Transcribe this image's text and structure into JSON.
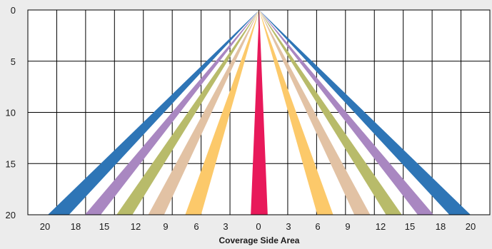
{
  "chart_data": {
    "type": "area",
    "title": "",
    "xlabel": "Coverage Side Area",
    "ylabel": "",
    "x_tick_labels": [
      "20",
      "18",
      "15",
      "12",
      "9",
      "6",
      "3",
      "0",
      "3",
      "6",
      "9",
      "12",
      "15",
      "18",
      "20"
    ],
    "y_tick_labels": [
      "0",
      "5",
      "10",
      "15",
      "20"
    ],
    "y_ticks": [
      0,
      5,
      10,
      15,
      20
    ],
    "ylim": [
      0,
      20
    ],
    "y_inverted": true,
    "grid": true,
    "legend": "none",
    "apex": {
      "x": 0,
      "y": 0
    },
    "series": [
      {
        "color": "#2e75b6",
        "x_at_20": [
          18,
          20
        ]
      },
      {
        "color": "#a987c1",
        "x_at_20": [
          15,
          16.5
        ]
      },
      {
        "color": "#b8bb6a",
        "x_at_20": [
          12,
          13.5
        ]
      },
      {
        "color": "#e2c2a4",
        "x_at_20": [
          9,
          10.5
        ]
      },
      {
        "color": "#fcc96a",
        "x_at_20": [
          5.5,
          7
        ]
      },
      {
        "color": "#e8195a",
        "x_at_20": [
          -0.8,
          0.8
        ],
        "center": true
      }
    ],
    "colors": {
      "background": "#ececec",
      "plot_background": "#ffffff",
      "grid": "#000000"
    }
  }
}
